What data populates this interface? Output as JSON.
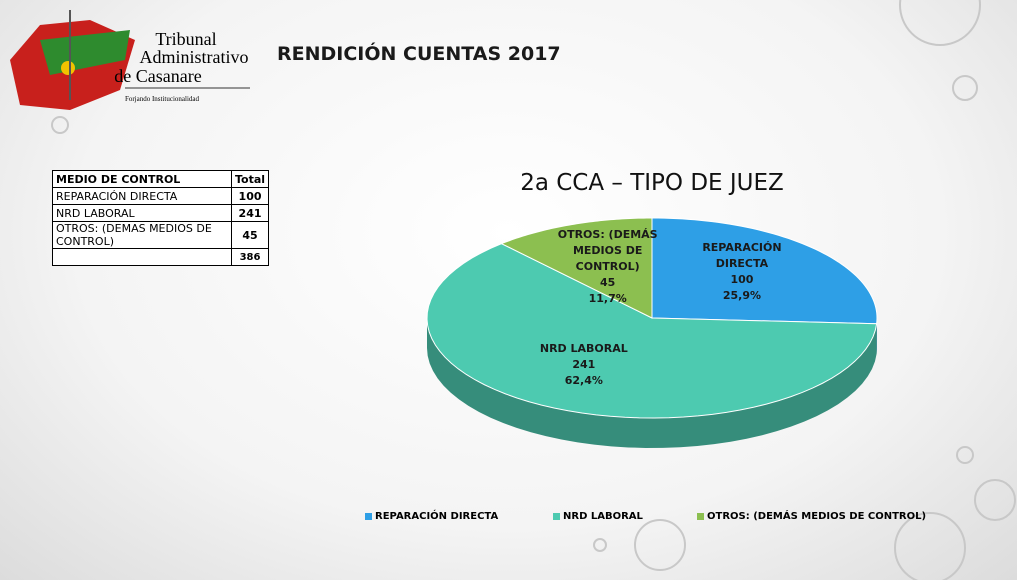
{
  "header": {
    "logo": {
      "line1": "Tribunal",
      "line2": "Administrativo",
      "line3": "de Casanare",
      "motto": "Forjando Institucionalidad"
    },
    "title": "RENDICIÓN CUENTAS 2017"
  },
  "table": {
    "columns": [
      "MEDIO DE CONTROL",
      "Total"
    ],
    "rows": [
      [
        "REPARACIÓN DIRECTA",
        100
      ],
      [
        "NRD LABORAL",
        241
      ],
      [
        "OTROS: (DEMAS MEDIOS DE CONTROL)",
        45
      ]
    ],
    "total": 386
  },
  "chart_data": {
    "type": "pie",
    "title": "2a CCA – TIPO DE JUEZ",
    "categories": [
      "REPARACIÓN DIRECTA",
      "NRD LABORAL",
      "OTROS: (DEMÁS MEDIOS DE CONTROL)"
    ],
    "values": [
      100,
      241,
      45
    ],
    "percent_labels": [
      "25,9%",
      "62,4%",
      "11,7%"
    ],
    "colors": [
      "#2e9fe6",
      "#4dcab0",
      "#8cbf50"
    ],
    "legend": "bottom"
  }
}
